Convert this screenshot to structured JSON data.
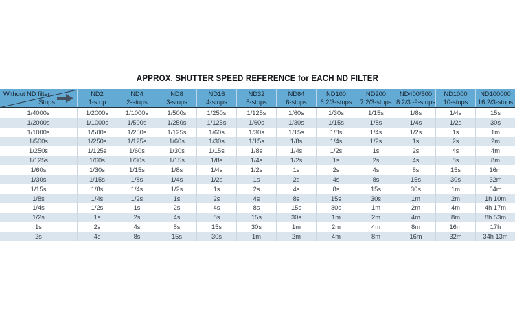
{
  "title": "APPROX. SHUTTER SPEED REFERENCE for EACH ND FILTER",
  "chart_data": {
    "type": "table",
    "title": "APPROX. SHUTTER SPEED REFERENCE for EACH ND FILTER",
    "corner": {
      "top_label": "Without ND filter",
      "bottom_label": "Stops"
    },
    "columns": [
      {
        "filter": "ND2",
        "stops": "1-stop"
      },
      {
        "filter": "ND4",
        "stops": "2-stops"
      },
      {
        "filter": "ND8",
        "stops": "3-stops"
      },
      {
        "filter": "ND16",
        "stops": "4-stops"
      },
      {
        "filter": "ND32",
        "stops": "5-stops"
      },
      {
        "filter": "ND64",
        "stops": "6-stops"
      },
      {
        "filter": "ND100",
        "stops": "6 2/3-stops"
      },
      {
        "filter": "ND200",
        "stops": "7 2/3-stops"
      },
      {
        "filter": "ND400/500",
        "stops": "8 2/3 -9-stops"
      },
      {
        "filter": "ND1000",
        "stops": "10-stops"
      },
      {
        "filter": "ND100000",
        "stops": "16 2/3-stops"
      }
    ],
    "rows": [
      [
        "1/4000s",
        "1/2000s",
        "1/1000s",
        "1/500s",
        "1/250s",
        "1/125s",
        "1/60s",
        "1/30s",
        "1/15s",
        "1/8s",
        "1/4s",
        "15s"
      ],
      [
        "1/2000s",
        "1/1000s",
        "1/500s",
        "1/250s",
        "1/125s",
        "1/60s",
        "1/30s",
        "1/15s",
        "1/8s",
        "1/4s",
        "1/2s",
        "30s"
      ],
      [
        "1/1000s",
        "1/500s",
        "1/250s",
        "1/125s",
        "1/60s",
        "1/30s",
        "1/15s",
        "1/8s",
        "1/4s",
        "1/2s",
        "1s",
        "1m"
      ],
      [
        "1/500s",
        "1/250s",
        "1/125s",
        "1/60s",
        "1/30s",
        "1/15s",
        "1/8s",
        "1/4s",
        "1/2s",
        "1s",
        "2s",
        "2m"
      ],
      [
        "1/250s",
        "1/125s",
        "1/60s",
        "1/30s",
        "1/15s",
        "1/8s",
        "1/4s",
        "1/2s",
        "1s",
        "2s",
        "4s",
        "4m"
      ],
      [
        "1/125s",
        "1/60s",
        "1/30s",
        "1/15s",
        "1/8s",
        "1/4s",
        "1/2s",
        "1s",
        "2s",
        "4s",
        "8s",
        "8m"
      ],
      [
        "1/60s",
        "1/30s",
        "1/15s",
        "1/8s",
        "1/4s",
        "1/2s",
        "1s",
        "2s",
        "4s",
        "8s",
        "15s",
        "16m"
      ],
      [
        "1/30s",
        "1/15s",
        "1/8s",
        "1/4s",
        "1/2s",
        "1s",
        "2s",
        "4s",
        "8s",
        "15s",
        "30s",
        "32m"
      ],
      [
        "1/15s",
        "1/8s",
        "1/4s",
        "1/2s",
        "1s",
        "2s",
        "4s",
        "8s",
        "15s",
        "30s",
        "1m",
        "64m"
      ],
      [
        "1/8s",
        "1/4s",
        "1/2s",
        "1s",
        "2s",
        "4s",
        "8s",
        "15s",
        "30s",
        "1m",
        "2m",
        "1h 10m"
      ],
      [
        "1/4s",
        "1/2s",
        "1s",
        "2s",
        "4s",
        "8s",
        "15s",
        "30s",
        "1m",
        "2m",
        "4m",
        "4h 17m"
      ],
      [
        "1/2s",
        "1s",
        "2s",
        "4s",
        "8s",
        "15s",
        "30s",
        "1m",
        "2m",
        "4m",
        "8m",
        "8h 53m"
      ],
      [
        "1s",
        "2s",
        "4s",
        "8s",
        "15s",
        "30s",
        "1m",
        "2m",
        "4m",
        "8m",
        "16m",
        "17h"
      ],
      [
        "2s",
        "4s",
        "8s",
        "15s",
        "30s",
        "1m",
        "2m",
        "4m",
        "8m",
        "16m",
        "32m",
        "34h 13m"
      ]
    ],
    "layout": {
      "striped_rows": true,
      "stripe_pattern": "even rows shaded",
      "header_position": "top"
    }
  },
  "colors": {
    "header-bg": "#63abd5",
    "header-text": "#17242f",
    "header-border": "#25323e",
    "stripe-bg": "#dbe5ee",
    "cell-text": "#353e47",
    "divider": "#ccd6e0",
    "arrow": "#44525f",
    "diagonal-line": "#2c3c4a"
  }
}
